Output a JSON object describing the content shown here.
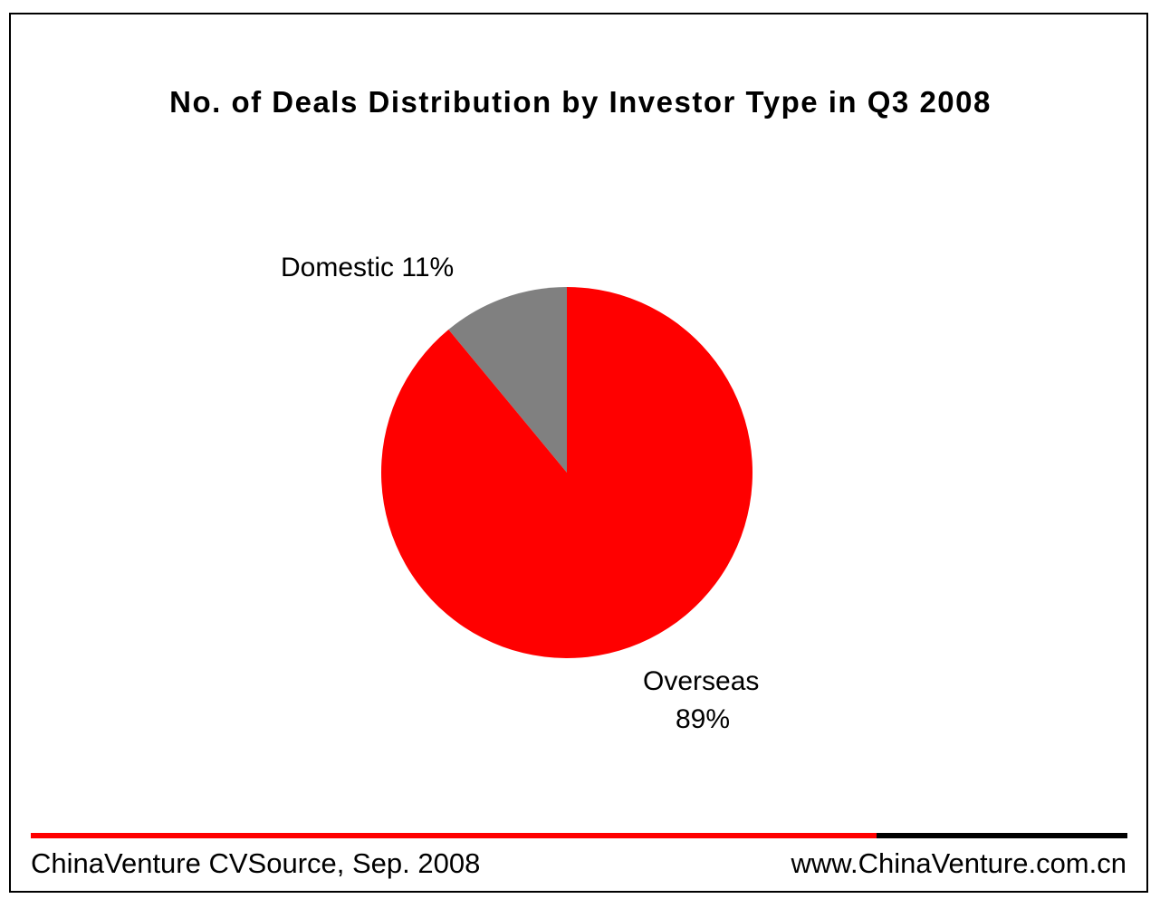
{
  "chart_data": {
    "type": "pie",
    "title": "No. of Deals Distribution by Investor Type in Q3 2008",
    "slices": [
      {
        "label": "Domestic",
        "value": 11,
        "display": "Domestic 11%",
        "color": "#808080"
      },
      {
        "label": "Overseas",
        "value": 89,
        "display_line1": "Overseas",
        "display_line2": "89%",
        "color": "#ff0000"
      }
    ],
    "unit": "%"
  },
  "footer": {
    "source": "ChinaVenture CVSource, Sep. 2008",
    "website": "www.ChinaVenture.com.cn"
  },
  "colors": {
    "accent_rule_red": "#ff0000",
    "accent_rule_black": "#000000"
  }
}
